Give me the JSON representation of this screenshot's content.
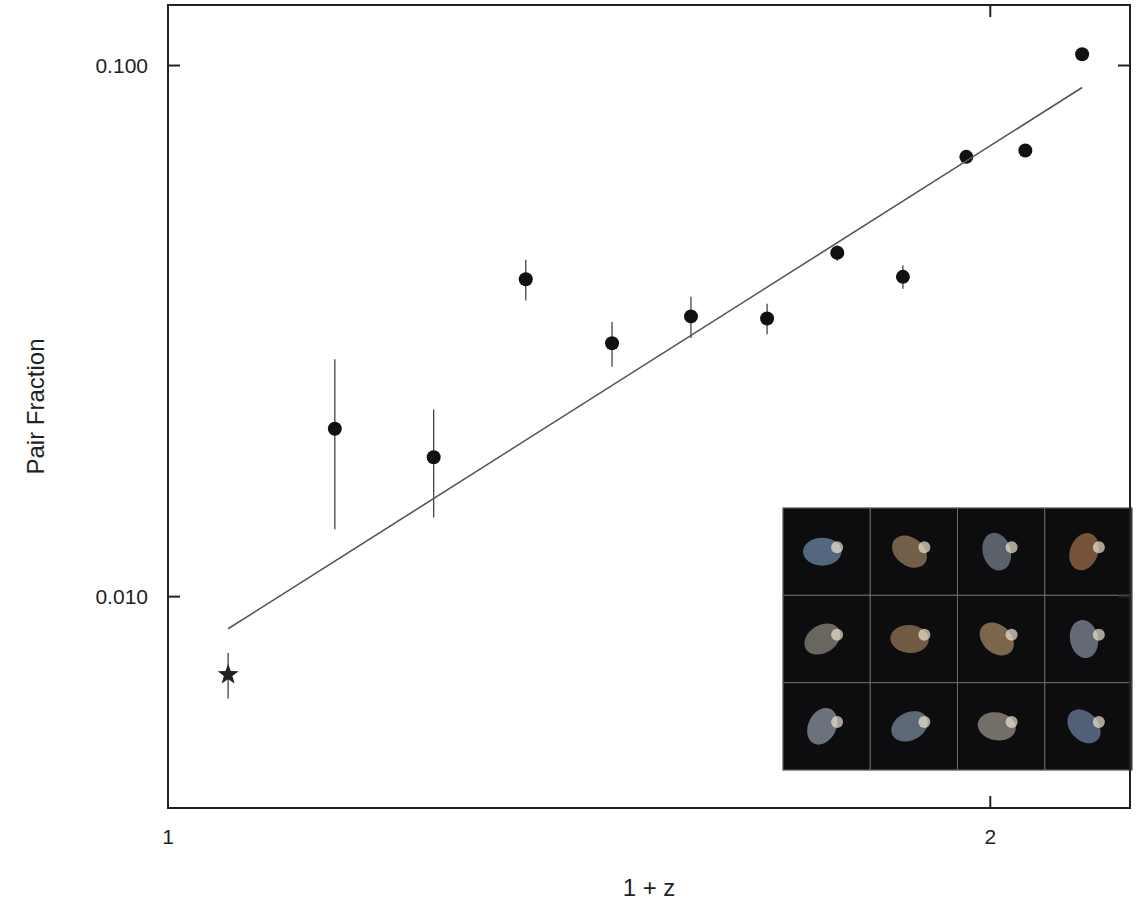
{
  "chart_data": {
    "type": "scatter",
    "x_label": "1 + z",
    "y_label": "Pair Fraction",
    "log": true,
    "grid": false,
    "xlim": [
      1,
      2.25
    ],
    "xticks": [
      1,
      2
    ],
    "ylim": [
      0.004,
      0.13
    ],
    "yticks": [
      {
        "value": 0.01,
        "label": "0.010"
      },
      {
        "value": 0.1,
        "label": "0.100"
      }
    ],
    "series": [
      {
        "type": "scatter",
        "marker": "star",
        "color": "#222222",
        "x": [
          1.052
        ],
        "values": [
          0.00713
        ],
        "errors": [
          0.0007
        ]
      },
      {
        "type": "scatter",
        "marker": "circle",
        "color": "#111111",
        "x": [
          1.151,
          1.251,
          1.352,
          1.454,
          1.554,
          1.657,
          1.758,
          1.858,
          1.96,
          2.06,
          2.161
        ],
        "values": [
          0.0207,
          0.0183,
          0.0396,
          0.03,
          0.0337,
          0.0334,
          0.0444,
          0.04,
          0.0673,
          0.0692,
          0.105
        ],
        "errors": [
          0.0073,
          0.0042,
          0.0035,
          0.0029,
          0.003,
          0.0022,
          0.0015,
          0.002,
          0.0015,
          0.0015,
          0.0015
        ]
      },
      {
        "type": "line",
        "line_style": "solid",
        "color": "#555555",
        "x": [
          1.052,
          2.161
        ],
        "values": [
          0.0087,
          0.0909
        ]
      }
    ]
  }
}
